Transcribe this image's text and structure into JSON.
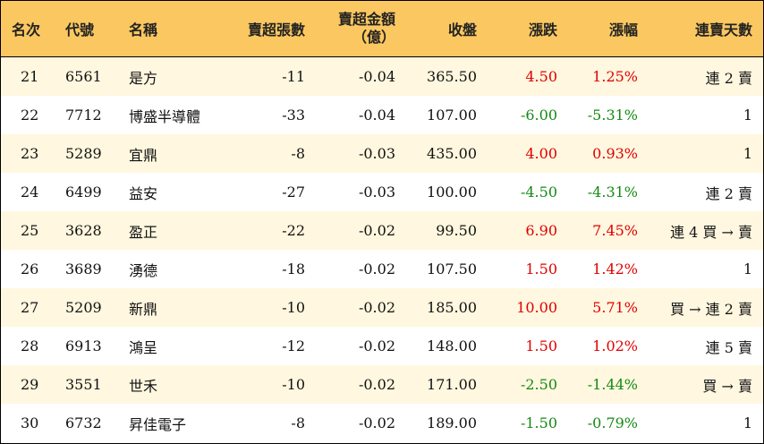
{
  "header": {
    "rank": "名次",
    "code": "代號",
    "name": "名稱",
    "sell_sheets": "賣超張數",
    "sell_amount_line1": "賣超金額",
    "sell_amount_line2": "（億）",
    "close": "收盤",
    "change": "漲跌",
    "change_pct": "漲幅",
    "streak": "連賣天數"
  },
  "colors": {
    "header_bg": "#fbc760",
    "stripe_bg": "#fff7df",
    "up": "#e00000",
    "down": "#138a13"
  },
  "rows": [
    {
      "rank": "21",
      "code": "6561",
      "name": "是方",
      "sheets": "-11",
      "amount": "-0.04",
      "close": "365.50",
      "change": "4.50",
      "pct": "1.25%",
      "dir": "up",
      "streak": "連 2 賣"
    },
    {
      "rank": "22",
      "code": "7712",
      "name": "博盛半導體",
      "sheets": "-33",
      "amount": "-0.04",
      "close": "107.00",
      "change": "-6.00",
      "pct": "-5.31%",
      "dir": "down",
      "streak": "1"
    },
    {
      "rank": "23",
      "code": "5289",
      "name": "宜鼎",
      "sheets": "-8",
      "amount": "-0.03",
      "close": "435.00",
      "change": "4.00",
      "pct": "0.93%",
      "dir": "up",
      "streak": "1"
    },
    {
      "rank": "24",
      "code": "6499",
      "name": "益安",
      "sheets": "-27",
      "amount": "-0.03",
      "close": "100.00",
      "change": "-4.50",
      "pct": "-4.31%",
      "dir": "down",
      "streak": "連 2 賣"
    },
    {
      "rank": "25",
      "code": "3628",
      "name": "盈正",
      "sheets": "-22",
      "amount": "-0.02",
      "close": "99.50",
      "change": "6.90",
      "pct": "7.45%",
      "dir": "up",
      "streak": "連 4 買 → 賣"
    },
    {
      "rank": "26",
      "code": "3689",
      "name": "湧德",
      "sheets": "-18",
      "amount": "-0.02",
      "close": "107.50",
      "change": "1.50",
      "pct": "1.42%",
      "dir": "up",
      "streak": "1"
    },
    {
      "rank": "27",
      "code": "5209",
      "name": "新鼎",
      "sheets": "-10",
      "amount": "-0.02",
      "close": "185.00",
      "change": "10.00",
      "pct": "5.71%",
      "dir": "up",
      "streak": "買 → 連 2 賣"
    },
    {
      "rank": "28",
      "code": "6913",
      "name": "鴻呈",
      "sheets": "-12",
      "amount": "-0.02",
      "close": "148.00",
      "change": "1.50",
      "pct": "1.02%",
      "dir": "up",
      "streak": "連 5 賣"
    },
    {
      "rank": "29",
      "code": "3551",
      "name": "世禾",
      "sheets": "-10",
      "amount": "-0.02",
      "close": "171.00",
      "change": "-2.50",
      "pct": "-1.44%",
      "dir": "down",
      "streak": "買 → 賣"
    },
    {
      "rank": "30",
      "code": "6732",
      "name": "昇佳電子",
      "sheets": "-8",
      "amount": "-0.02",
      "close": "189.00",
      "change": "-1.50",
      "pct": "-0.79%",
      "dir": "down",
      "streak": "1"
    }
  ]
}
